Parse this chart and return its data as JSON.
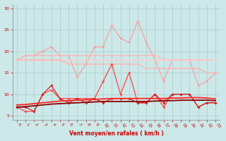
{
  "x": [
    0,
    1,
    2,
    3,
    4,
    5,
    6,
    7,
    8,
    9,
    10,
    11,
    12,
    13,
    14,
    15,
    16,
    17,
    18,
    19,
    20,
    21,
    22,
    23
  ],
  "series": [
    {
      "name": "rafales_light_jagged",
      "color": "#FF9999",
      "linewidth": 0.8,
      "marker": "D",
      "markersize": 1.8,
      "values": [
        18,
        19,
        19,
        20,
        21,
        19,
        19,
        14,
        17,
        21,
        21,
        26,
        23,
        22,
        27,
        22,
        18,
        13,
        18,
        18,
        18,
        12,
        13,
        15
      ]
    },
    {
      "name": "rafales_smooth_high",
      "color": "#FFB3B3",
      "linewidth": 0.8,
      "marker": "D",
      "markersize": 1.8,
      "values": [
        18,
        19,
        19,
        19,
        19,
        19,
        19,
        19,
        19,
        19,
        19,
        19,
        19,
        19,
        19,
        19,
        19,
        18,
        18,
        18,
        18,
        18,
        18,
        18
      ]
    },
    {
      "name": "moy_trend_upper",
      "color": "#FFCCCC",
      "linewidth": 1.0,
      "marker": "D",
      "markersize": 1.5,
      "values": [
        18,
        18,
        18,
        18,
        18,
        18,
        18,
        18,
        18,
        18,
        18,
        18,
        18,
        18,
        18,
        18,
        18,
        18,
        18,
        18,
        18,
        18,
        18,
        18
      ]
    },
    {
      "name": "moy_trend_lower",
      "color": "#FFB3B3",
      "linewidth": 1.0,
      "marker": "D",
      "markersize": 1.5,
      "values": [
        18,
        18,
        18,
        18,
        18,
        18,
        17,
        17,
        17,
        17,
        17,
        17,
        17,
        17,
        17,
        16,
        16,
        16,
        16,
        16,
        16,
        16,
        15,
        15
      ]
    },
    {
      "name": "rafales_red_jagged",
      "color": "#FF4444",
      "linewidth": 0.9,
      "marker": "D",
      "markersize": 2.0,
      "values": [
        7,
        6,
        6,
        10,
        11,
        9,
        9,
        9,
        9,
        9,
        13,
        17,
        10,
        15,
        8,
        8,
        10,
        7,
        10,
        10,
        10,
        7,
        8,
        8
      ]
    },
    {
      "name": "vent_moyen_jagged",
      "color": "#CC2222",
      "linewidth": 0.9,
      "marker": "D",
      "markersize": 2.0,
      "values": [
        7,
        7,
        6,
        10,
        12,
        9,
        8,
        9,
        8,
        9,
        8,
        9,
        9,
        9,
        8,
        8,
        10,
        8,
        10,
        10,
        10,
        7,
        8,
        8
      ]
    },
    {
      "name": "trend_vent_dark",
      "color": "#880000",
      "linewidth": 1.3,
      "marker": null,
      "markersize": 0,
      "values": [
        7.0,
        7.1,
        7.3,
        7.5,
        7.7,
        7.8,
        7.9,
        8.0,
        8.1,
        8.2,
        8.3,
        8.3,
        8.3,
        8.3,
        8.3,
        8.3,
        8.4,
        8.5,
        8.5,
        8.6,
        8.6,
        8.6,
        8.6,
        8.5
      ]
    },
    {
      "name": "trend_vent_red",
      "color": "#FF2222",
      "linewidth": 1.3,
      "marker": null,
      "markersize": 0,
      "values": [
        7.5,
        7.6,
        7.8,
        8.0,
        8.2,
        8.4,
        8.5,
        8.6,
        8.7,
        8.8,
        8.9,
        9.0,
        9.0,
        9.0,
        9.0,
        9.0,
        9.0,
        9.0,
        9.1,
        9.1,
        9.2,
        9.2,
        9.1,
        8.9
      ]
    }
  ],
  "xlabel": "Vent moyen/en rafales ( km/h )",
  "xlim": [
    -0.5,
    23.5
  ],
  "ylim": [
    4,
    31
  ],
  "yticks": [
    5,
    10,
    15,
    20,
    25,
    30
  ],
  "xticks": [
    0,
    1,
    2,
    3,
    4,
    5,
    6,
    7,
    8,
    9,
    10,
    11,
    12,
    13,
    14,
    15,
    16,
    17,
    18,
    19,
    20,
    21,
    22,
    23
  ],
  "bg_color": "#CCE8E8",
  "grid_color": "#AACCCC",
  "xlabel_color": "#CC0000",
  "tick_color": "#CC0000"
}
